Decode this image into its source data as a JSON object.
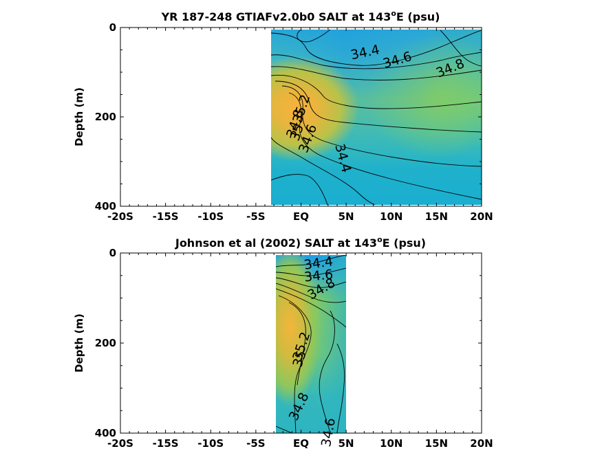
{
  "chart_data": [
    {
      "type": "heatmap",
      "title": "YR 187-248 GTIAFv2.0b0 SALT at 143",
      "title_sup": "o",
      "title_tail": "E (psu)",
      "ylabel": "Depth (m)",
      "xlabel": "",
      "x_ticks": [
        "-20S",
        "-15S",
        "-10S",
        "-5S",
        "EQ",
        "5N",
        "10N",
        "15N",
        "20N"
      ],
      "x_tick_values": [
        -20,
        -15,
        -10,
        -5,
        0,
        5,
        10,
        15,
        20
      ],
      "y_ticks": [
        "0",
        "200",
        "400"
      ],
      "y_tick_values": [
        0,
        200,
        400
      ],
      "xlim": [
        -20,
        20
      ],
      "ylim": [
        0,
        400
      ],
      "y_reversed": true,
      "data_extent_lat": [
        -3.5,
        20
      ],
      "contour_labels": [
        {
          "text": "34.4",
          "lat": 7.2,
          "depth": 65,
          "rot": -12
        },
        {
          "text": "34.6",
          "lat": 10.8,
          "depth": 82,
          "rot": -16
        },
        {
          "text": "34.8",
          "lat": 16.7,
          "depth": 100,
          "rot": -22
        },
        {
          "text": "35.2",
          "lat": 0.5,
          "depth": 185,
          "rot": -72
        },
        {
          "text": "35",
          "lat": 0.0,
          "depth": 238,
          "rot": -72
        },
        {
          "text": "34.8",
          "lat": -0.2,
          "depth": 218,
          "rot": -72
        },
        {
          "text": "34.6",
          "lat": 1.2,
          "depth": 252,
          "rot": -70
        },
        {
          "text": "34.4",
          "lat": 4.2,
          "depth": 295,
          "rot": 75
        }
      ]
    },
    {
      "type": "heatmap",
      "title": "Johnson et al (2002) SALT at 143",
      "title_sup": "o",
      "title_tail": "E (psu)",
      "ylabel": "Depth (m)",
      "xlabel": "",
      "x_ticks": [
        "-20S",
        "-15S",
        "-10S",
        "-5S",
        "EQ",
        "5N",
        "10N",
        "15N",
        "20N"
      ],
      "x_tick_values": [
        -20,
        -15,
        -10,
        -5,
        0,
        5,
        10,
        15,
        20
      ],
      "y_ticks": [
        "0",
        "200",
        "400"
      ],
      "y_tick_values": [
        0,
        200,
        400
      ],
      "xlim": [
        -20,
        20
      ],
      "ylim": [
        0,
        400
      ],
      "y_reversed": true,
      "data_extent_lat": [
        -3,
        5
      ],
      "contour_labels": [
        {
          "text": "34.4",
          "lat": 2.0,
          "depth": 32,
          "rot": -8
        },
        {
          "text": "34.6",
          "lat": 2.0,
          "depth": 60,
          "rot": -6
        },
        {
          "text": "34.8",
          "lat": 2.5,
          "depth": 88,
          "rot": -30
        },
        {
          "text": "35.2",
          "lat": 0.5,
          "depth": 210,
          "rot": -72
        },
        {
          "text": "35",
          "lat": 0.3,
          "depth": 238,
          "rot": -72
        },
        {
          "text": "34.8",
          "lat": 0.2,
          "depth": 345,
          "rot": -65
        },
        {
          "text": "34.6",
          "lat": 3.5,
          "depth": 400,
          "rot": -80
        }
      ]
    }
  ]
}
